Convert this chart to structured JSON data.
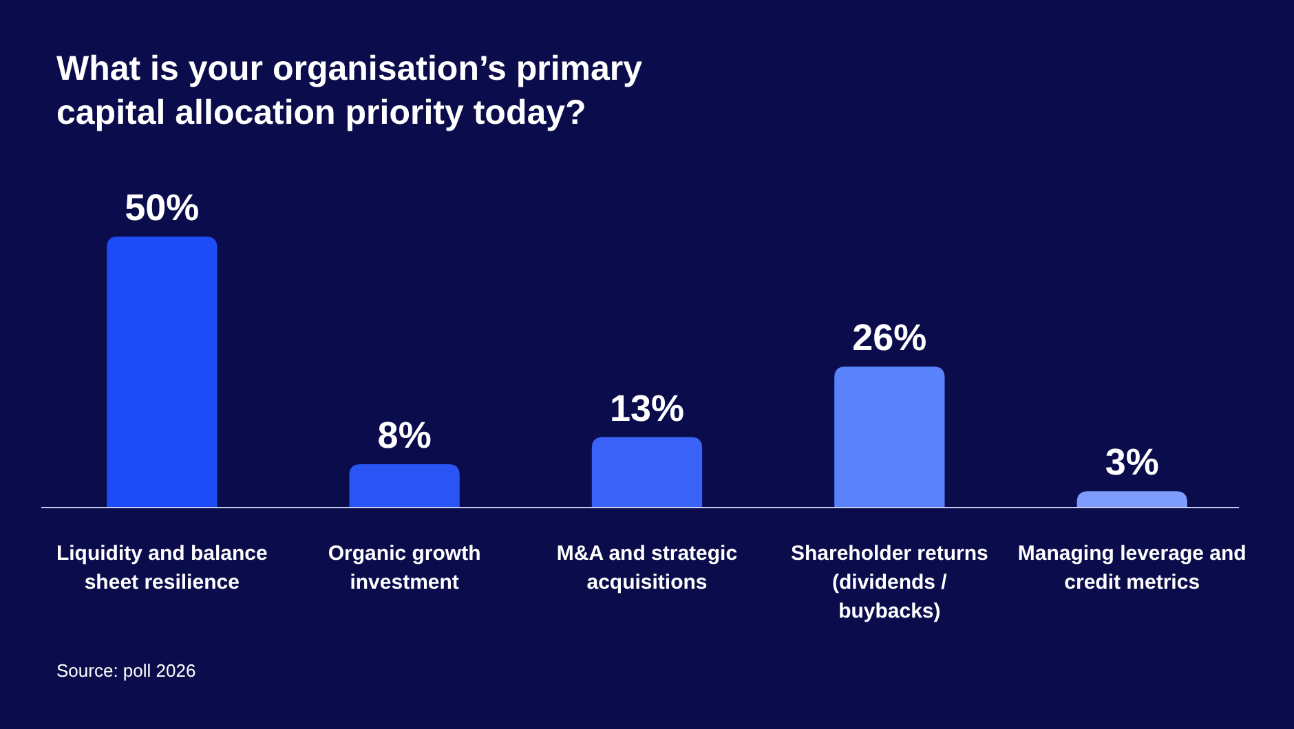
{
  "chart_data": {
    "type": "bar",
    "title": "What is your organisation’s primary capital allocation priority today?",
    "categories": [
      "Liquidity and balance sheet resilience",
      "Organic growth investment",
      "M&A and strategic acquisitions",
      "Shareholder returns (dividends / buybacks)",
      "Managing leverage and credit metrics"
    ],
    "values": [
      50,
      8,
      13,
      26,
      3
    ],
    "value_labels": [
      "50%",
      "8%",
      "13%",
      "26%",
      "3%"
    ],
    "colors": [
      "#1e4cf6",
      "#2a55f4",
      "#3a62f6",
      "#5a82fb",
      "#7d9cfb"
    ],
    "tick_labels": "x",
    "annotations": [
      "Source: poll 2026"
    ]
  }
}
